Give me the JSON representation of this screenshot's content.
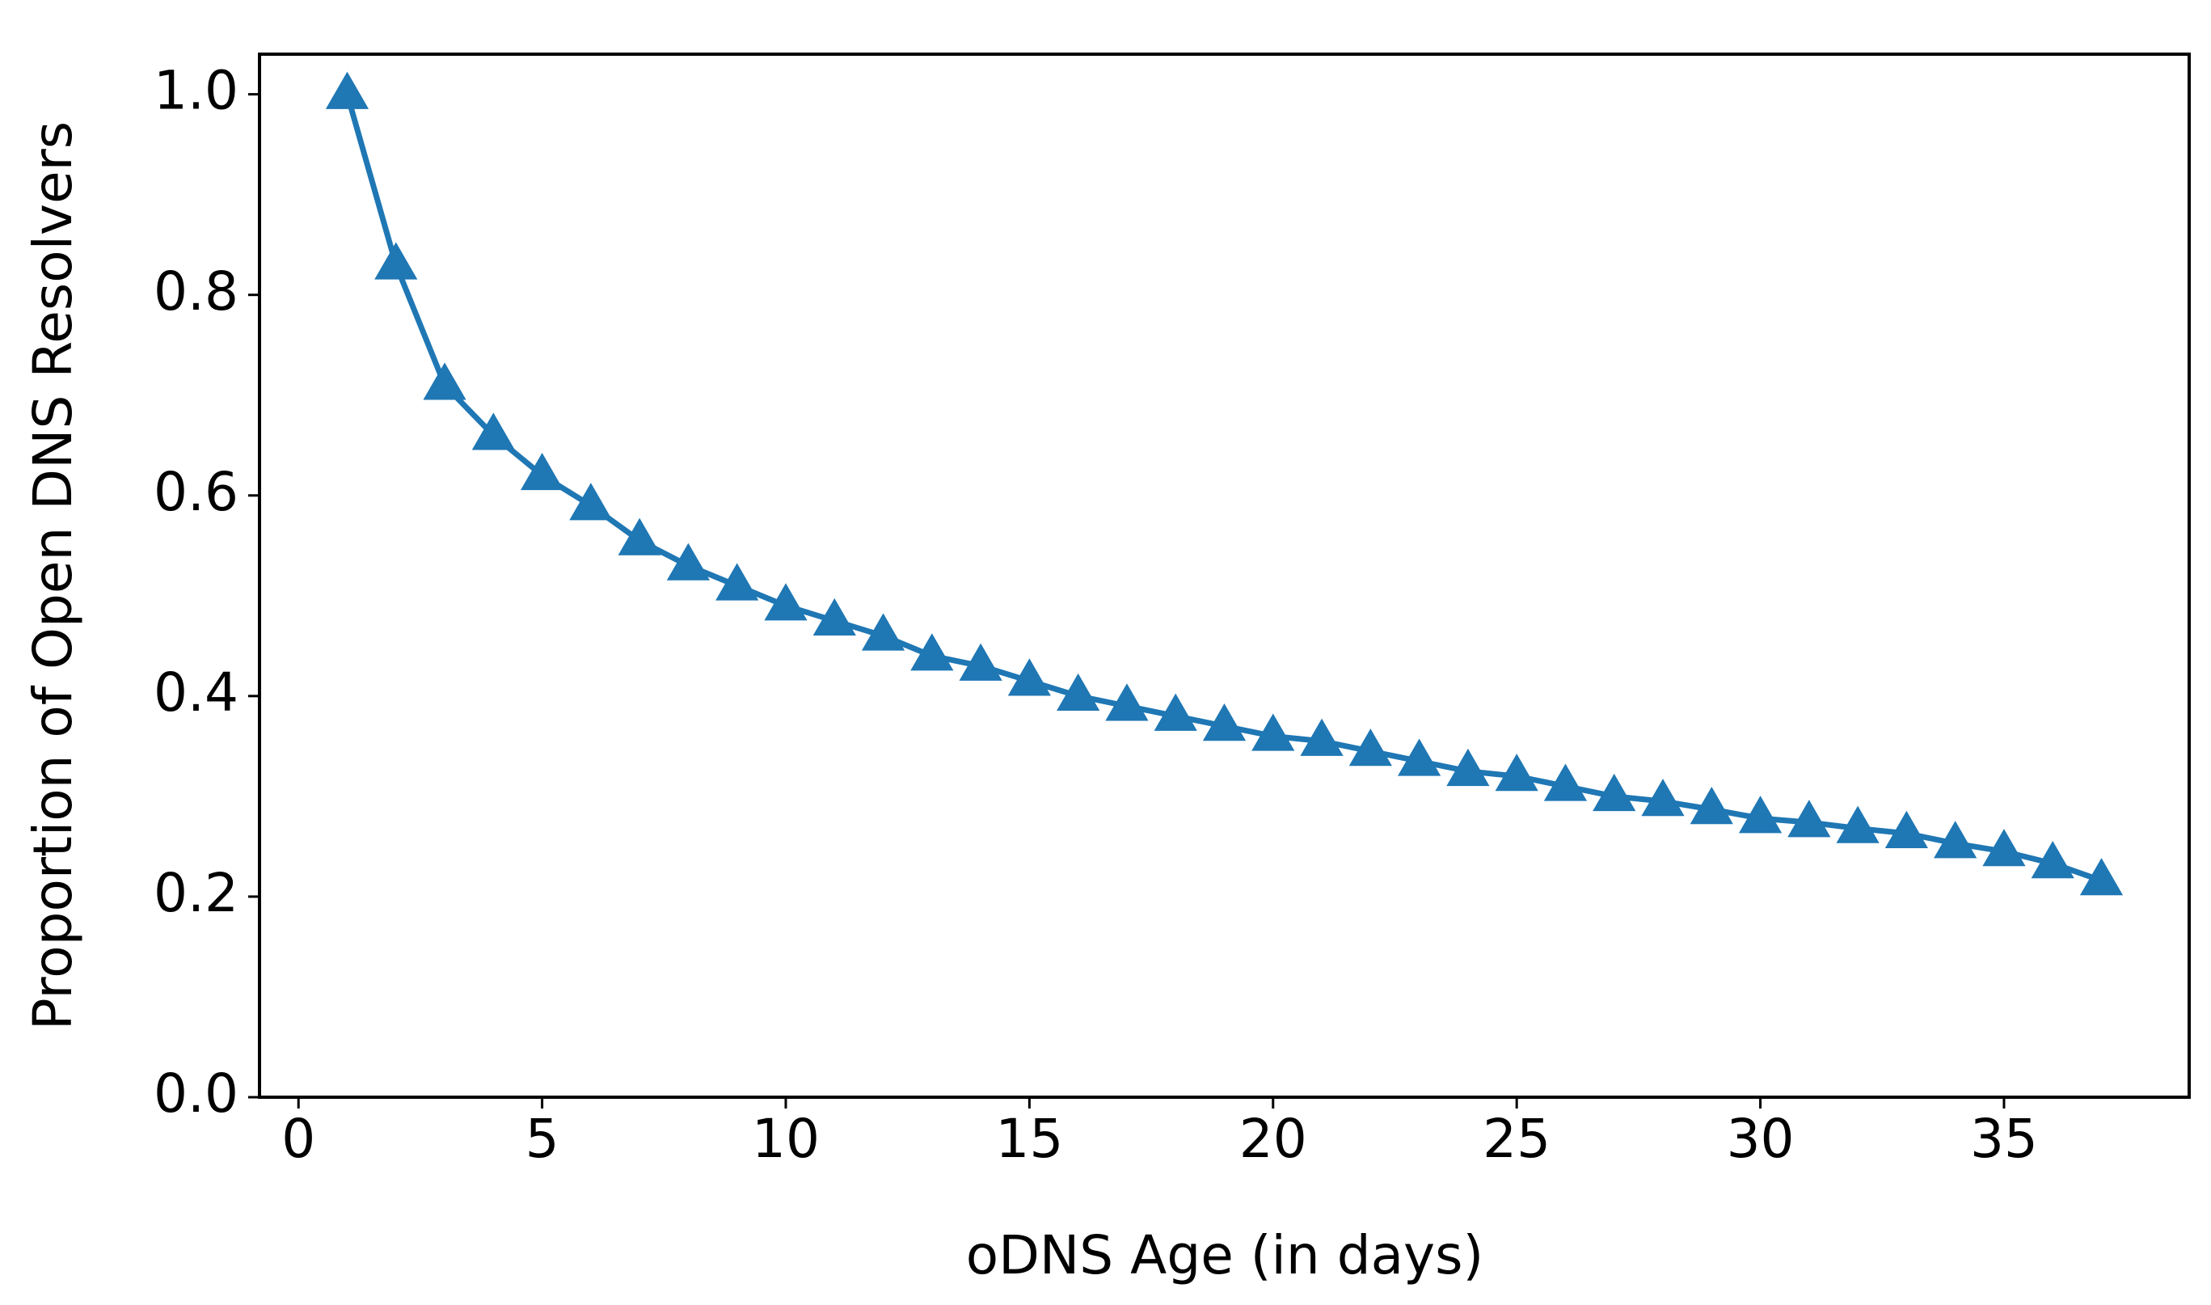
{
  "chart_data": {
    "type": "line",
    "xlabel": "oDNS Age (in days)",
    "ylabel": "Proportion of Open DNS Resolvers",
    "x": [
      1,
      2,
      3,
      4,
      5,
      6,
      7,
      8,
      9,
      10,
      11,
      12,
      13,
      14,
      15,
      16,
      17,
      18,
      19,
      20,
      21,
      22,
      23,
      24,
      25,
      26,
      27,
      28,
      29,
      30,
      31,
      32,
      33,
      34,
      35,
      36,
      37
    ],
    "series": [
      {
        "color": "#1f77b4",
        "marker": "triangle",
        "values": [
          1.0,
          0.83,
          0.71,
          0.66,
          0.62,
          0.59,
          0.555,
          0.53,
          0.51,
          0.49,
          0.475,
          0.46,
          0.44,
          0.43,
          0.415,
          0.4,
          0.39,
          0.38,
          0.37,
          0.36,
          0.355,
          0.345,
          0.335,
          0.325,
          0.32,
          0.31,
          0.3,
          0.295,
          0.287,
          0.278,
          0.274,
          0.268,
          0.263,
          0.253,
          0.245,
          0.233,
          0.216
        ]
      }
    ],
    "xlim": [
      -0.8,
      38.8
    ],
    "ylim": [
      0,
      1.04
    ],
    "xticks": [
      0,
      5,
      10,
      15,
      20,
      25,
      30,
      35
    ],
    "yticks": [
      {
        "value": 0,
        "label": "0.0"
      },
      0.2,
      0.4,
      0.6,
      0.8,
      {
        "value": 1,
        "label": "1.0"
      }
    ],
    "grid": false
  }
}
